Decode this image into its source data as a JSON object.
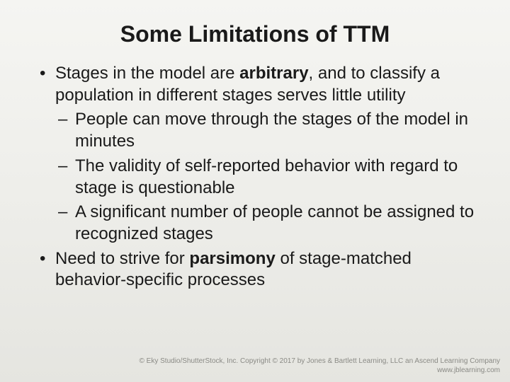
{
  "title": "Some Limitations of TTM",
  "title_fontsize": 32,
  "body_fontsize": 24,
  "footer_fontsize": 10,
  "text_color": "#1a1a1a",
  "footer_color": "#8a8a85",
  "background_gradient": [
    "#f5f5f2",
    "#eeeeea",
    "#e5e5e0"
  ],
  "bullets": [
    {
      "pre": "Stages in the model are ",
      "bold": "arbitrary",
      "post": ", and to classify a population in different stages serves little utility",
      "sub": [
        "People can move through the stages of the model in minutes",
        "The validity of self-reported behavior with regard to stage is questionable",
        "A significant number of people cannot be assigned to recognized stages"
      ]
    },
    {
      "pre": "Need to strive for ",
      "bold": "parsimony",
      "post": " of stage-matched behavior-specific processes",
      "sub": []
    }
  ],
  "footer": {
    "line1": "© Eky Studio/ShutterStock, Inc. Copyright © 2017 by Jones & Bartlett Learning, LLC an Ascend Learning Company",
    "line2": "www.jblearning.com"
  }
}
